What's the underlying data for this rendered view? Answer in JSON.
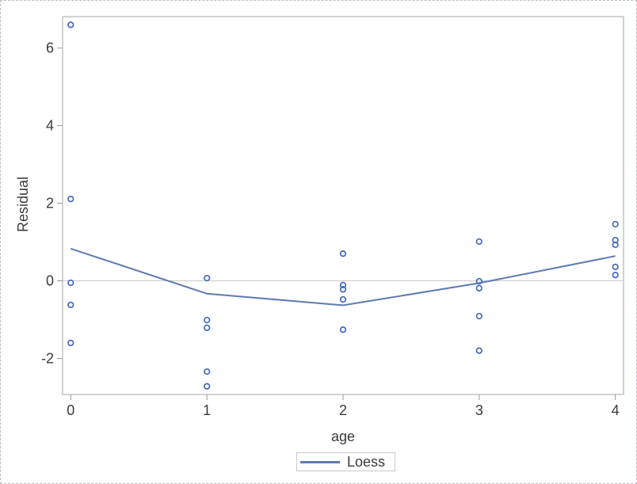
{
  "chart_data": {
    "type": "scatter",
    "title": "",
    "xlabel": "age",
    "ylabel": "Residual",
    "x_ticks": [
      0,
      1,
      2,
      3,
      4
    ],
    "y_ticks": [
      -2,
      0,
      2,
      4,
      6
    ],
    "xlim": [
      -0.06,
      4.06
    ],
    "ylim": [
      -2.93,
      6.81
    ],
    "grid": false,
    "reference_line_y": 0,
    "legend": {
      "label": "Loess",
      "position": "bottom-center"
    },
    "series": [
      {
        "name": "residual-points",
        "type": "scatter",
        "marker": "open-circle",
        "color": "#4468c2",
        "points": [
          {
            "x": 0,
            "y": 6.6
          },
          {
            "x": 0,
            "y": 2.11
          },
          {
            "x": 0,
            "y": -0.05
          },
          {
            "x": 0,
            "y": -0.62
          },
          {
            "x": 0,
            "y": -1.6
          },
          {
            "x": 1,
            "y": 0.07
          },
          {
            "x": 1,
            "y": -1.01
          },
          {
            "x": 1,
            "y": -1.21
          },
          {
            "x": 1,
            "y": -2.34
          },
          {
            "x": 1,
            "y": -2.72
          },
          {
            "x": 2,
            "y": 0.7
          },
          {
            "x": 2,
            "y": -0.11
          },
          {
            "x": 2,
            "y": -0.22
          },
          {
            "x": 2,
            "y": -0.48
          },
          {
            "x": 2,
            "y": -1.26
          },
          {
            "x": 3,
            "y": 1.01
          },
          {
            "x": 3,
            "y": -0.01
          },
          {
            "x": 3,
            "y": -0.19
          },
          {
            "x": 3,
            "y": -0.91
          },
          {
            "x": 3,
            "y": -1.8
          },
          {
            "x": 4,
            "y": 1.46
          },
          {
            "x": 4,
            "y": 1.05
          },
          {
            "x": 4,
            "y": 0.93
          },
          {
            "x": 4,
            "y": 0.36
          },
          {
            "x": 4,
            "y": 0.15
          }
        ]
      },
      {
        "name": "Loess",
        "type": "line",
        "color": "#5e7ab1",
        "points": [
          {
            "x": 0,
            "y": 0.83
          },
          {
            "x": 1,
            "y": -0.33
          },
          {
            "x": 2,
            "y": -0.63
          },
          {
            "x": 3,
            "y": -0.06
          },
          {
            "x": 4,
            "y": 0.64
          }
        ]
      }
    ],
    "colors": {
      "marker": "#4468c2",
      "loess_line": "#5e7ab1",
      "zero_line": "#c9c9c9",
      "wall_border": "#a6a6a6",
      "tick": "#999999",
      "text": "#3a3a3a",
      "figure_border": "#c4b8c4"
    }
  }
}
